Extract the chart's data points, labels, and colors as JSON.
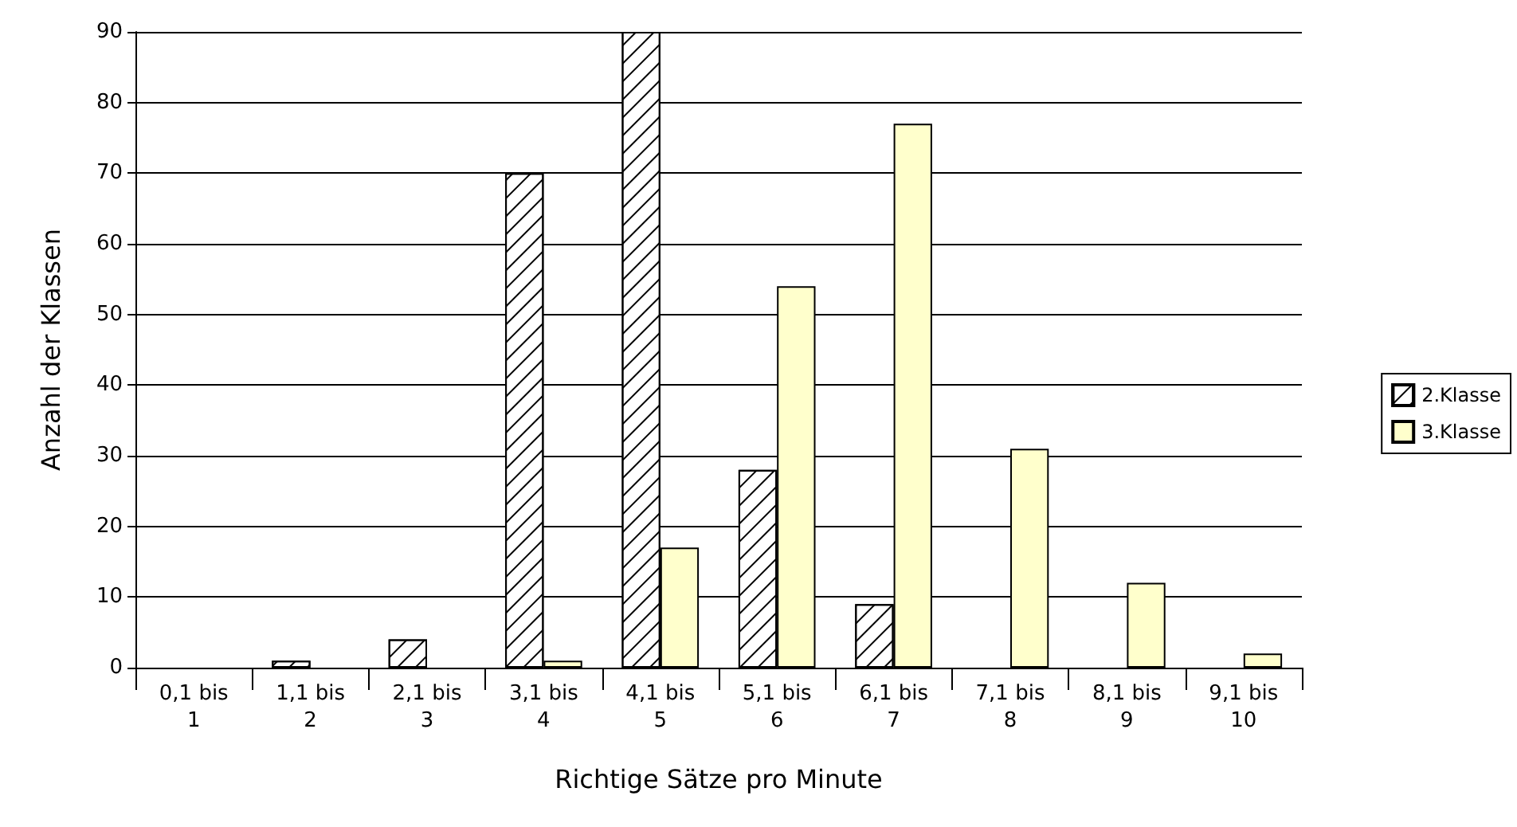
{
  "chart_data": {
    "type": "bar",
    "xlabel": "Richtige Sätze pro Minute",
    "ylabel": "Anzahl der Klassen",
    "categories": [
      "0,1 bis 1",
      "1,1 bis 2",
      "2,1 bis 3",
      "3,1 bis 4",
      "4,1 bis 5",
      "5,1 bis 6",
      "6,1 bis 7",
      "7,1 bis 8",
      "8,1 bis 9",
      "9,1 bis 10"
    ],
    "series": [
      {
        "name": "2.Klasse",
        "color": "#ffffff",
        "values": [
          0,
          1,
          4,
          70,
          90,
          28,
          9,
          0,
          0,
          0
        ]
      },
      {
        "name": "3.Klasse",
        "color": "#ffffcc",
        "values": [
          0,
          0,
          0,
          1,
          17,
          54,
          77,
          31,
          12,
          2
        ]
      }
    ],
    "ylim": [
      0,
      90
    ],
    "yticks": [
      0,
      10,
      20,
      30,
      40,
      50,
      60,
      70,
      80,
      90
    ],
    "grid": "y",
    "legend": "right"
  }
}
